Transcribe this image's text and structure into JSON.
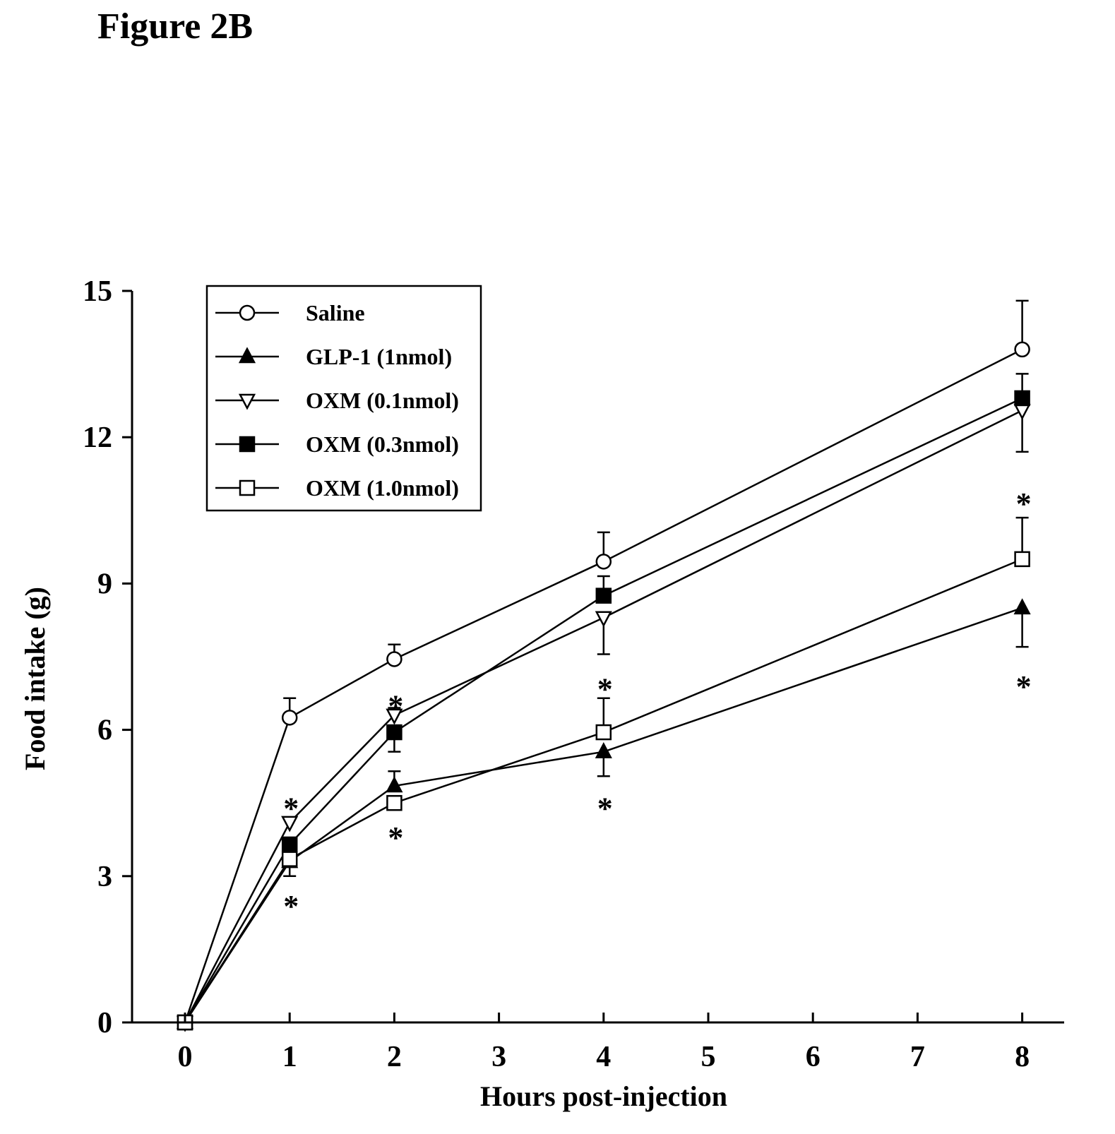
{
  "figure_label": "Figure 2B",
  "chart_data": {
    "type": "line",
    "title": "",
    "xlabel": "Hours post-injection",
    "ylabel": "Food intake (g)",
    "x_ticks": [
      "0",
      "1",
      "2",
      "3",
      "4",
      "5",
      "6",
      "7",
      "8"
    ],
    "y_ticks": [
      "0",
      "3",
      "6",
      "9",
      "12",
      "15"
    ],
    "ylim": [
      0,
      15
    ],
    "legend_position": "top-left",
    "grid": false,
    "series": [
      {
        "name": "Saline",
        "marker": "circle-open",
        "x": [
          0,
          1,
          2,
          4,
          8
        ],
        "y": [
          0,
          6.25,
          7.45,
          9.45,
          13.8
        ],
        "err_upper": [
          null,
          6.65,
          7.75,
          10.05,
          14.8
        ],
        "err_lower": [
          null,
          null,
          null,
          null,
          null
        ]
      },
      {
        "name": "GLP-1 (1nmol)",
        "marker": "triangle-up-filled",
        "x": [
          0,
          1,
          2,
          4,
          8
        ],
        "y": [
          0,
          3.3,
          4.85,
          5.55,
          8.5
        ],
        "err_upper": [
          null,
          null,
          5.15,
          null,
          null
        ],
        "err_lower": [
          null,
          3.0,
          null,
          5.05,
          7.7
        ]
      },
      {
        "name": "OXM (0.1nmol)",
        "marker": "triangle-down-open",
        "x": [
          0,
          1,
          2,
          4,
          8
        ],
        "y": [
          0,
          4.1,
          6.3,
          8.3,
          12.55
        ],
        "err_upper": [
          null,
          null,
          6.45,
          null,
          null
        ],
        "err_lower": [
          null,
          null,
          null,
          7.55,
          11.7
        ]
      },
      {
        "name": "OXM (0.3nmol)",
        "marker": "square-filled",
        "x": [
          0,
          1,
          2,
          4,
          8
        ],
        "y": [
          0,
          3.65,
          5.95,
          8.75,
          12.8
        ],
        "err_upper": [
          null,
          null,
          null,
          9.15,
          13.3
        ],
        "err_lower": [
          null,
          null,
          5.55,
          null,
          null
        ]
      },
      {
        "name": "OXM (1.0nmol)",
        "marker": "square-open",
        "x": [
          0,
          1,
          2,
          4,
          8
        ],
        "y": [
          0,
          3.35,
          4.5,
          5.95,
          9.5
        ],
        "err_upper": [
          null,
          null,
          null,
          6.65,
          10.35
        ],
        "err_lower": [
          null,
          null,
          null,
          null,
          null
        ]
      }
    ],
    "annotations": [
      {
        "text": "*",
        "x": 1,
        "y": 4.55
      },
      {
        "text": "*",
        "x": 1,
        "y": 2.55
      },
      {
        "text": "*",
        "x": 2,
        "y": 6.65
      },
      {
        "text": "*",
        "x": 2,
        "y": 3.95
      },
      {
        "text": "*",
        "x": 4,
        "y": 7.0
      },
      {
        "text": "*",
        "x": 4,
        "y": 4.55
      },
      {
        "text": "*",
        "x": 8,
        "y": 10.8
      },
      {
        "text": "*",
        "x": 8,
        "y": 7.05
      }
    ]
  }
}
